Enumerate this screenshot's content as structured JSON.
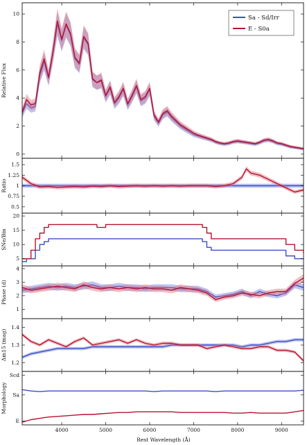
{
  "colors": {
    "blue": "#3a4fc4",
    "red": "#b5122e",
    "blue_band": "#6f7fe0",
    "red_band": "#e0707f"
  },
  "legend": {
    "items": [
      "Sa - Sd/Irr",
      "E - S0a"
    ],
    "placement": "top-right"
  },
  "xlabel": "Rest Wavelength (Å)",
  "x_ticks": [
    "4000",
    "5000",
    "6000",
    "7000",
    "8000",
    "9000"
  ],
  "chart_data": [
    {
      "type": "line",
      "panel": "flux",
      "ylabel": "Relative Flux",
      "xlim": [
        3100,
        9500
      ],
      "ylim": [
        -0.3,
        10.8
      ],
      "yticks": [
        0,
        2,
        4,
        6,
        8,
        10
      ],
      "x": [
        3100,
        3200,
        3300,
        3400,
        3500,
        3600,
        3700,
        3800,
        3900,
        4000,
        4100,
        4200,
        4300,
        4400,
        4500,
        4600,
        4700,
        4800,
        4900,
        5000,
        5100,
        5200,
        5300,
        5400,
        5500,
        5600,
        5700,
        5800,
        5900,
        6000,
        6100,
        6200,
        6300,
        6400,
        6500,
        6600,
        6700,
        6800,
        6900,
        7000,
        7100,
        7200,
        7300,
        7400,
        7500,
        7600,
        7700,
        7800,
        7900,
        8000,
        8100,
        8200,
        8300,
        8400,
        8500,
        8600,
        8700,
        8800,
        8900,
        9000,
        9100,
        9200,
        9300,
        9400,
        9500
      ],
      "series": [
        {
          "name": "Sa - Sd/Irr",
          "values": [
            2.9,
            3.6,
            3.3,
            3.4,
            5.6,
            6.6,
            5.4,
            7.2,
            9.3,
            8.1,
            9.2,
            8.5,
            6.8,
            6.4,
            8.3,
            7.8,
            5.3,
            5.1,
            5.2,
            4.1,
            4.7,
            3.6,
            4.0,
            4.6,
            3.5,
            4.1,
            4.8,
            3.8,
            4.0,
            4.6,
            2.7,
            2.2,
            2.8,
            3.0,
            2.6,
            2.3,
            2.0,
            1.8,
            1.6,
            1.4,
            1.3,
            1.2,
            1.1,
            1.0,
            0.85,
            0.75,
            0.7,
            0.75,
            0.85,
            0.9,
            0.85,
            0.8,
            0.75,
            0.7,
            0.8,
            0.95,
            1.0,
            0.9,
            0.75,
            0.7,
            0.6,
            0.5,
            0.45,
            0.4,
            0.35
          ]
        },
        {
          "name": "E - S0a",
          "values": [
            3.0,
            3.9,
            3.5,
            3.6,
            5.8,
            6.8,
            5.5,
            7.3,
            9.5,
            8.2,
            9.3,
            8.6,
            6.9,
            6.5,
            8.4,
            7.9,
            5.4,
            5.1,
            5.3,
            4.2,
            4.8,
            3.7,
            4.1,
            4.7,
            3.6,
            4.2,
            4.9,
            3.9,
            4.1,
            4.7,
            2.8,
            2.3,
            2.9,
            3.1,
            2.7,
            2.4,
            2.1,
            1.9,
            1.7,
            1.5,
            1.35,
            1.25,
            1.15,
            1.05,
            0.9,
            0.8,
            0.75,
            0.8,
            0.9,
            0.95,
            0.9,
            0.85,
            0.8,
            0.75,
            0.85,
            1.0,
            1.05,
            0.95,
            0.8,
            0.75,
            0.65,
            0.55,
            0.5,
            0.45,
            0.4
          ]
        }
      ]
    },
    {
      "type": "line",
      "panel": "ratio",
      "ylabel": "Ratio",
      "xlim": [
        3100,
        9500
      ],
      "ylim": [
        0.35,
        1.65
      ],
      "yticks": [
        0.5,
        0.75,
        1.0,
        1.25,
        1.5
      ],
      "x": [
        3100,
        3300,
        3500,
        3700,
        3900,
        4100,
        4300,
        4500,
        4700,
        4900,
        5100,
        5300,
        5500,
        5700,
        5900,
        6100,
        6300,
        6500,
        6700,
        6900,
        7100,
        7300,
        7500,
        7700,
        7900,
        8100,
        8200,
        8300,
        8500,
        8700,
        8900,
        9100,
        9300,
        9500
      ],
      "series": [
        {
          "name": "Sa - Sd/Irr",
          "values": [
            1.0,
            1.0,
            1.0,
            1.0,
            1.0,
            1.0,
            1.0,
            1.0,
            1.0,
            1.0,
            1.0,
            1.0,
            1.0,
            1.0,
            1.0,
            1.0,
            1.0,
            1.0,
            1.0,
            1.0,
            1.0,
            1.0,
            1.0,
            1.0,
            1.0,
            1.0,
            1.0,
            1.0,
            1.0,
            1.0,
            1.0,
            1.0,
            1.0,
            1.0
          ]
        },
        {
          "name": "E - S0a",
          "values": [
            1.2,
            1.05,
            0.97,
            0.98,
            0.96,
            0.97,
            0.98,
            0.97,
            0.99,
            0.98,
            1.0,
            0.98,
            0.99,
            1.0,
            0.99,
            1.0,
            0.99,
            1.0,
            0.99,
            1.0,
            1.0,
            1.0,
            0.98,
            1.0,
            1.05,
            1.2,
            1.4,
            1.3,
            1.25,
            1.15,
            1.05,
            0.95,
            0.85,
            0.9
          ]
        }
      ]
    },
    {
      "type": "line",
      "panel": "sne",
      "ylabel": "SNe/Bin",
      "xlim": [
        3100,
        9500
      ],
      "ylim": [
        2.5,
        21
      ],
      "yticks": [
        5,
        10,
        15,
        20
      ],
      "x": [
        3100,
        3200,
        3300,
        3400,
        3500,
        3600,
        3700,
        4800,
        5000,
        7100,
        7200,
        7300,
        7400,
        9000,
        9100,
        9200,
        9300,
        9500
      ],
      "series": [
        {
          "name": "Sa - Sd/Irr",
          "values": [
            4,
            5,
            5,
            8,
            10,
            11,
            12,
            12,
            12,
            12,
            11,
            9,
            8,
            8,
            6,
            6,
            5,
            5
          ]
        },
        {
          "name": "E - S0a",
          "values": [
            5,
            5,
            8,
            12,
            14,
            16,
            17,
            16,
            17,
            17,
            16,
            14,
            12,
            12,
            10,
            10,
            8,
            7
          ]
        }
      ]
    },
    {
      "type": "line",
      "panel": "phase",
      "ylabel": "Phase (d)",
      "xlim": [
        3100,
        9500
      ],
      "ylim": [
        0.3,
        4.2
      ],
      "yticks": [
        1,
        2,
        3,
        4
      ],
      "x": [
        3100,
        3300,
        3500,
        3700,
        3900,
        4100,
        4300,
        4500,
        4700,
        4900,
        5100,
        5300,
        5500,
        5700,
        5900,
        6100,
        6300,
        6500,
        6700,
        6900,
        7100,
        7300,
        7500,
        7700,
        7900,
        8100,
        8300,
        8500,
        8700,
        8900,
        9100,
        9300,
        9500
      ],
      "series": [
        {
          "name": "Sa - Sd/Irr",
          "values": [
            2.4,
            2.5,
            2.6,
            2.7,
            2.6,
            2.7,
            2.6,
            2.7,
            2.8,
            2.6,
            2.6,
            2.7,
            2.6,
            2.6,
            2.5,
            2.6,
            2.6,
            2.6,
            2.5,
            2.5,
            2.5,
            2.3,
            1.9,
            2.0,
            2.1,
            2.3,
            2.0,
            2.3,
            2.1,
            2.0,
            2.2,
            2.8,
            2.6
          ]
        },
        {
          "name": "E - S0a",
          "values": [
            2.6,
            2.4,
            2.5,
            2.6,
            2.7,
            2.6,
            2.5,
            2.8,
            2.6,
            2.5,
            2.6,
            2.5,
            2.6,
            2.5,
            2.6,
            2.5,
            2.5,
            2.4,
            2.6,
            2.5,
            2.4,
            2.2,
            1.7,
            1.9,
            2.0,
            2.2,
            2.1,
            2.0,
            2.2,
            2.3,
            2.3,
            2.9,
            3.3
          ]
        }
      ]
    },
    {
      "type": "line",
      "panel": "dm15",
      "ylabel": "Δm15 (mag)",
      "xlim": [
        3100,
        9500
      ],
      "ylim": [
        1.15,
        1.45
      ],
      "yticks": [
        1.2,
        1.3,
        1.4
      ],
      "x": [
        3100,
        3300,
        3500,
        3700,
        3900,
        4100,
        4300,
        4500,
        4700,
        4900,
        5100,
        5300,
        5500,
        5700,
        5900,
        6100,
        6300,
        6500,
        6700,
        6900,
        7100,
        7300,
        7500,
        7700,
        7900,
        8100,
        8300,
        8500,
        8700,
        8900,
        9100,
        9300,
        9500
      ],
      "series": [
        {
          "name": "Sa - Sd/Irr",
          "values": [
            1.23,
            1.25,
            1.26,
            1.27,
            1.28,
            1.28,
            1.28,
            1.28,
            1.29,
            1.29,
            1.29,
            1.29,
            1.29,
            1.29,
            1.29,
            1.29,
            1.29,
            1.3,
            1.3,
            1.3,
            1.3,
            1.3,
            1.3,
            1.3,
            1.3,
            1.29,
            1.3,
            1.3,
            1.31,
            1.32,
            1.32,
            1.33,
            1.33
          ]
        },
        {
          "name": "E - S0a",
          "values": [
            1.36,
            1.32,
            1.3,
            1.33,
            1.31,
            1.29,
            1.32,
            1.34,
            1.3,
            1.31,
            1.32,
            1.33,
            1.31,
            1.33,
            1.31,
            1.3,
            1.31,
            1.31,
            1.3,
            1.3,
            1.3,
            1.28,
            1.29,
            1.3,
            1.29,
            1.28,
            1.28,
            1.29,
            1.29,
            1.27,
            1.27,
            1.26,
            1.21
          ]
        }
      ]
    },
    {
      "type": "line",
      "panel": "morph",
      "ylabel": "Morphology",
      "xlim": [
        3100,
        9500
      ],
      "ylim": [
        0.4,
        8.6
      ],
      "ytick_labels": [
        "E",
        "Sa",
        "Scd"
      ],
      "ytick_values": [
        1,
        5,
        8
      ],
      "x": [
        3100,
        3300,
        3500,
        3700,
        3900,
        4100,
        4300,
        4500,
        4700,
        4900,
        5100,
        5300,
        5500,
        5700,
        5900,
        6100,
        6300,
        6500,
        6700,
        6900,
        7100,
        7300,
        7500,
        7700,
        7900,
        8100,
        8300,
        8500,
        8700,
        8900,
        9100,
        9300,
        9500
      ],
      "series": [
        {
          "name": "Sa - Sd/Irr",
          "values": [
            5.8,
            5.6,
            5.5,
            5.6,
            5.6,
            5.6,
            5.6,
            5.6,
            5.6,
            5.6,
            5.6,
            5.6,
            5.6,
            5.6,
            5.6,
            5.5,
            5.6,
            5.6,
            5.6,
            5.6,
            5.6,
            5.6,
            5.5,
            5.6,
            5.6,
            5.6,
            5.6,
            5.6,
            5.6,
            5.6,
            5.6,
            5.6,
            5.7
          ]
        },
        {
          "name": "E - S0a",
          "values": [
            0.8,
            1.2,
            1.4,
            1.6,
            1.7,
            1.8,
            1.9,
            2.0,
            2.0,
            2.1,
            2.2,
            2.3,
            2.3,
            2.4,
            2.4,
            2.4,
            2.4,
            2.4,
            2.3,
            2.3,
            2.3,
            2.3,
            2.3,
            2.3,
            2.2,
            2.2,
            2.3,
            2.2,
            2.2,
            2.2,
            2.2,
            2.4,
            2.6
          ]
        }
      ]
    }
  ]
}
